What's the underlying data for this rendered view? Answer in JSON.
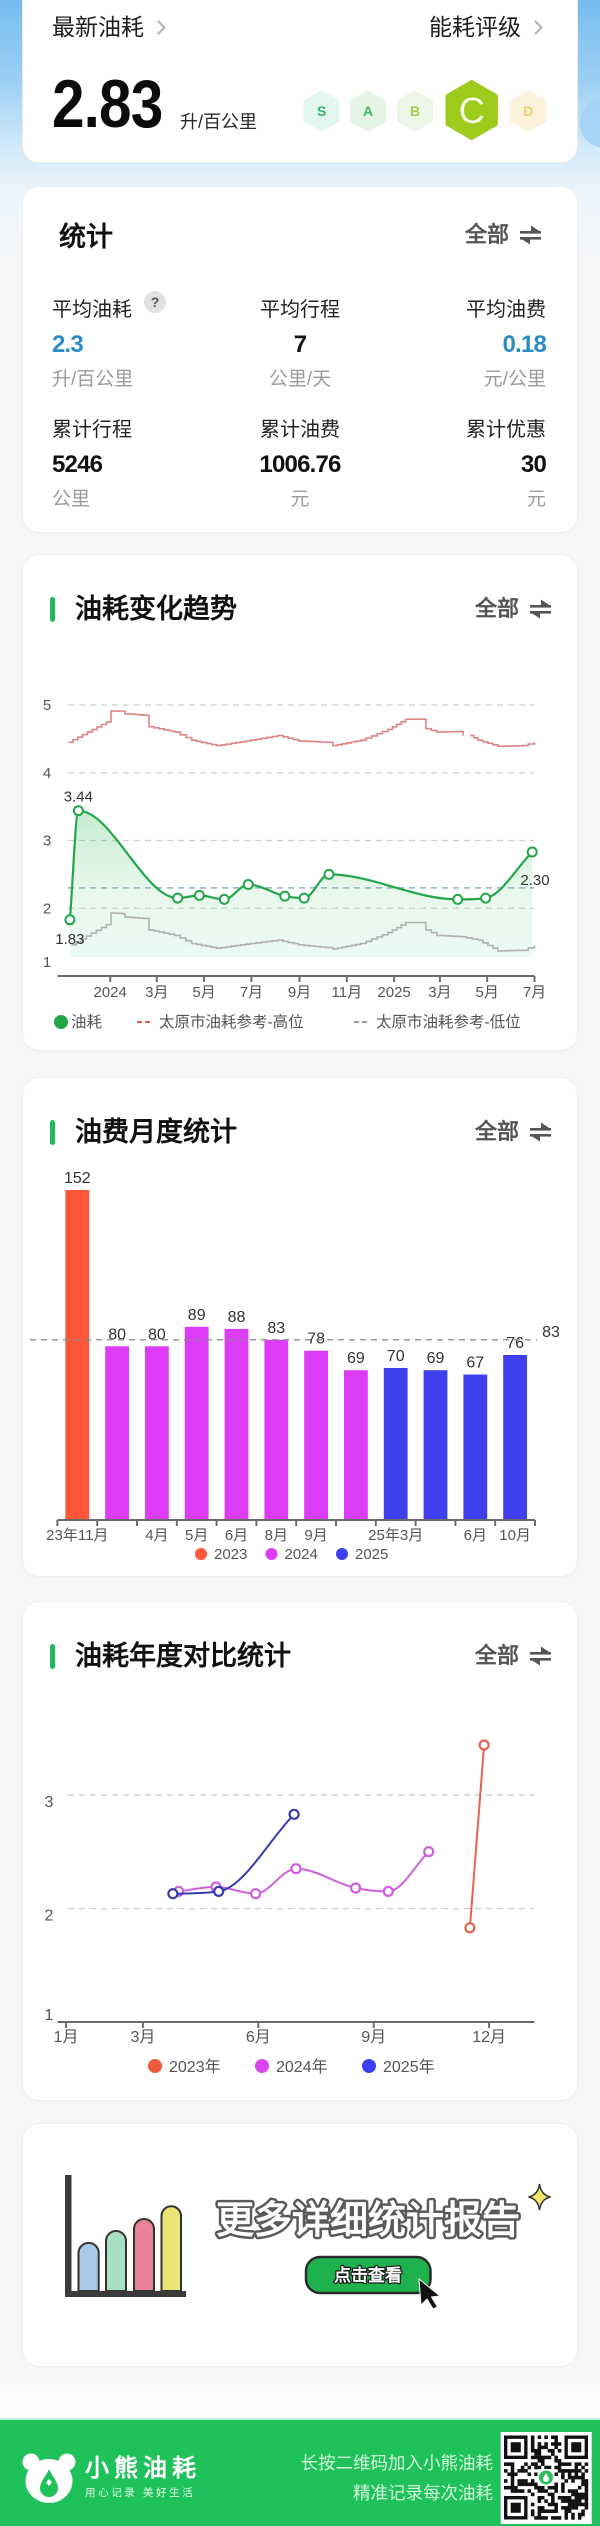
{
  "top_card": {
    "latest_label": "最新油耗",
    "rating_label": "能耗评级",
    "latest_value": "2.83",
    "latest_unit": "升/百公里",
    "active_rating": "C",
    "rating_levels": [
      {
        "label": "S",
        "bg": "#e3f6ef",
        "fg": "#35b364"
      },
      {
        "label": "A",
        "bg": "#e4f5e6",
        "fg": "#45b85a"
      },
      {
        "label": "B",
        "bg": "#edf5e6",
        "fg": "#9dd04e"
      },
      {
        "label": "C",
        "bg": "#9ccb1c",
        "fg": "#f7fbe6",
        "active": true
      },
      {
        "label": "D",
        "bg": "#fcf2da",
        "fg": "#f3cc72"
      }
    ]
  },
  "stats": {
    "title": "统计",
    "filter_label": "全部",
    "help_label": "?",
    "items": [
      {
        "label": "平均油耗",
        "value": "2.3",
        "unit": "升/百公里",
        "value_color": "#2b8cc4"
      },
      {
        "label": "平均行程",
        "value": "7",
        "unit": "公里/天"
      },
      {
        "label": "平均油费",
        "value": "0.18",
        "unit": "元/公里",
        "value_color": "#2b8cc4"
      },
      {
        "label": "累计行程",
        "value": "5246",
        "unit": "公里"
      },
      {
        "label": "累计油费",
        "value": "1006.76",
        "unit": "元"
      },
      {
        "label": "累计优惠",
        "value": "30",
        "unit": "元"
      }
    ]
  },
  "trend": {
    "title": "油耗变化趋势",
    "filter_label": "全部"
  },
  "monthly": {
    "title": "油费月度统计",
    "filter_label": "全部"
  },
  "yearly": {
    "title": "油耗年度对比统计",
    "filter_label": "全部"
  },
  "promo": {
    "title": "更多详细统计报告",
    "button_label": "点击查看"
  },
  "footer": {
    "brand": "小熊油耗",
    "tagline": "用心记录 美好生活",
    "line1": "长按二维码加入小熊油耗",
    "line2": "精准记录每次油耗"
  },
  "colors": {
    "accent_green": "#1fb85a",
    "footer_green": "#1ec15a",
    "highlight_blue": "#2b8cc4",
    "rating_active": "#9ccb1c"
  },
  "chart_data": [
    {
      "type": "line",
      "title": "油耗变化趋势",
      "xlabel": "",
      "ylabel": "",
      "ylim": [
        1,
        5
      ],
      "yticks": [
        1,
        2,
        3,
        4,
        5
      ],
      "xlim": [
        "2023-10-25",
        "2025-07-01"
      ],
      "xticks": [
        {
          "label": "2024",
          "date": "2024-01-01"
        },
        {
          "label": "3月",
          "date": "2024-03-01"
        },
        {
          "label": "5月",
          "date": "2024-05-01"
        },
        {
          "label": "7月",
          "date": "2024-07-01"
        },
        {
          "label": "9月",
          "date": "2024-09-01"
        },
        {
          "label": "11月",
          "date": "2024-11-01"
        },
        {
          "label": "2025",
          "date": "2025-01-01"
        },
        {
          "label": "3月",
          "date": "2025-03-01"
        },
        {
          "label": "5月",
          "date": "2025-05-01"
        },
        {
          "label": "7月",
          "date": "2025-07-01"
        }
      ],
      "grid": true,
      "legend_position": "bottom",
      "series": [
        {
          "name": "油耗",
          "color": "#23a64a",
          "legend_style": "dot",
          "smooth": true,
          "area": true,
          "points": [
            {
              "date": "2023-11-10",
              "value": 1.83
            },
            {
              "date": "2023-11-21",
              "value": 3.44
            },
            {
              "date": "2024-03-28",
              "value": 2.15
            },
            {
              "date": "2024-04-25",
              "value": 2.19
            },
            {
              "date": "2024-05-27",
              "value": 2.13
            },
            {
              "date": "2024-06-27",
              "value": 2.35
            },
            {
              "date": "2024-08-13",
              "value": 2.18
            },
            {
              "date": "2024-09-07",
              "value": 2.15
            },
            {
              "date": "2024-10-09",
              "value": 2.5
            },
            {
              "date": "2025-03-24",
              "value": 2.13
            },
            {
              "date": "2025-04-29",
              "value": 2.15
            },
            {
              "date": "2025-06-28",
              "value": 2.83
            }
          ]
        },
        {
          "name": "太原市油耗参考-高位",
          "color": "#dc8585",
          "legend_color": "#e05a5a",
          "legend_style": "dashed",
          "step": true,
          "points": [
            {
              "date": "2023-11-08",
              "value": 4.45
            },
            {
              "date": "2023-12-27",
              "value": 4.75
            },
            {
              "date": "2024-01-02",
              "value": 4.91
            },
            {
              "date": "2024-01-16",
              "value": 4.91
            },
            {
              "date": "2024-01-20",
              "value": 4.87
            },
            {
              "date": "2024-02-13",
              "value": 4.85
            },
            {
              "date": "2024-02-20",
              "value": 4.68
            },
            {
              "date": "2024-03-24",
              "value": 4.6
            },
            {
              "date": "2024-04-15",
              "value": 4.48
            },
            {
              "date": "2024-05-17",
              "value": 4.4
            },
            {
              "date": "2024-06-30",
              "value": 4.48
            },
            {
              "date": "2024-08-04",
              "value": 4.55
            },
            {
              "date": "2024-08-31",
              "value": 4.47
            },
            {
              "date": "2024-10-05",
              "value": 4.45
            },
            {
              "date": "2024-10-14",
              "value": 4.4
            },
            {
              "date": "2024-11-19",
              "value": 4.48
            },
            {
              "date": "2024-12-24",
              "value": 4.64
            },
            {
              "date": "2025-01-16",
              "value": 4.79
            },
            {
              "date": "2025-02-05",
              "value": 4.79
            },
            {
              "date": "2025-02-11",
              "value": 4.65
            },
            {
              "date": "2025-02-25",
              "value": 4.6
            },
            {
              "date": "2025-03-28",
              "value": 4.61
            },
            {
              "date": "2025-03-31",
              "value": 4.55
            },
            {
              "date": "2025-04-05",
              "value": null
            },
            {
              "date": "2025-04-09",
              "value": 4.55
            },
            {
              "date": "2025-04-19",
              "value": 4.48
            },
            {
              "date": "2025-05-15",
              "value": 4.39
            },
            {
              "date": "2025-06-15",
              "value": 4.4
            },
            {
              "date": "2025-07-01",
              "value": 4.45
            }
          ]
        },
        {
          "name": "太原市油耗参考-低位",
          "color": "#b0b0b0",
          "legend_color": "#9a9a9a",
          "legend_style": "dashed",
          "step": true,
          "points": [
            {
              "date": "2023-11-12",
              "value": 1.46
            },
            {
              "date": "2023-12-27",
              "value": 1.76
            },
            {
              "date": "2024-01-02",
              "value": 1.93
            },
            {
              "date": "2024-01-16",
              "value": 1.92
            },
            {
              "date": "2024-01-20",
              "value": 1.87
            },
            {
              "date": "2024-02-13",
              "value": 1.85
            },
            {
              "date": "2024-02-20",
              "value": 1.68
            },
            {
              "date": "2024-03-24",
              "value": 1.6
            },
            {
              "date": "2024-04-15",
              "value": 1.48
            },
            {
              "date": "2024-05-17",
              "value": 1.41
            },
            {
              "date": "2024-06-30",
              "value": 1.48
            },
            {
              "date": "2024-08-04",
              "value": 1.53
            },
            {
              "date": "2024-08-31",
              "value": 1.46
            },
            {
              "date": "2024-10-05",
              "value": 1.42
            },
            {
              "date": "2024-10-14",
              "value": 1.4
            },
            {
              "date": "2024-11-19",
              "value": 1.48
            },
            {
              "date": "2024-12-24",
              "value": 1.64
            },
            {
              "date": "2025-01-16",
              "value": 1.79
            },
            {
              "date": "2025-02-05",
              "value": 1.79
            },
            {
              "date": "2025-02-11",
              "value": 1.68
            },
            {
              "date": "2025-02-25",
              "value": 1.6
            },
            {
              "date": "2025-03-28",
              "value": 1.58
            },
            {
              "date": "2025-04-19",
              "value": 1.53
            },
            {
              "date": "2025-05-15",
              "value": 1.37
            },
            {
              "date": "2025-06-15",
              "value": 1.38
            },
            {
              "date": "2025-07-01",
              "value": 1.45
            }
          ]
        }
      ],
      "annotations": [
        {
          "type": "max",
          "label": "3.44",
          "date": "2023-11-21",
          "value": 3.44
        },
        {
          "type": "min",
          "label": "1.83",
          "date": "2023-11-10",
          "value": 1.83
        },
        {
          "type": "average",
          "label": "2.30",
          "value": 2.3
        }
      ]
    },
    {
      "type": "bar",
      "title": "油费月度统计",
      "xlabel": "",
      "ylabel": "",
      "categories": [
        "23年11月",
        "",
        "4月",
        "5月",
        "6月",
        "8月",
        "9月",
        "",
        "25年3月",
        "",
        "6月",
        "10月"
      ],
      "values": [
        152,
        80,
        80,
        89,
        88,
        83,
        78,
        69,
        70,
        69,
        67,
        76
      ],
      "groups": [
        "2023",
        "2024",
        "2024",
        "2024",
        "2024",
        "2024",
        "2024",
        "2024",
        "2025",
        "2025",
        "2025",
        "2025"
      ],
      "series": [
        {
          "name": "2023",
          "color": "#ff5638"
        },
        {
          "name": "2024",
          "color": "#dc3cf5"
        },
        {
          "name": "2025",
          "color": "#3f3ff0"
        }
      ],
      "average": 83,
      "average_label": "83",
      "grid": false,
      "legend_position": "bottom"
    },
    {
      "type": "line",
      "title": "油耗年度对比统计",
      "xlabel": "",
      "ylabel": "",
      "xlim": [
        0.78,
        13.18
      ],
      "ylim": [
        1,
        3.44
      ],
      "yticks": [
        1,
        2,
        3
      ],
      "xticks": [
        {
          "label": "1月",
          "month": 1
        },
        {
          "label": "3月",
          "month": 3
        },
        {
          "label": "6月",
          "month": 6
        },
        {
          "label": "9月",
          "month": 9
        },
        {
          "label": "12月",
          "month": 12
        }
      ],
      "grid": true,
      "legend_position": "bottom",
      "series": [
        {
          "name": "2023年",
          "color": "#f05a3c",
          "line_color": "#e2654f",
          "points": [
            {
              "month": 11.5,
              "value": 1.83
            },
            {
              "month": 11.87,
              "value": 3.44
            }
          ]
        },
        {
          "name": "2024年",
          "color": "#d946ef",
          "line_color": "#cf5fe0",
          "points": [
            {
              "month": 3.93,
              "value": 2.15
            },
            {
              "month": 4.9,
              "value": 2.19
            },
            {
              "month": 5.93,
              "value": 2.13
            },
            {
              "month": 6.98,
              "value": 2.35
            },
            {
              "month": 8.53,
              "value": 2.18
            },
            {
              "month": 9.38,
              "value": 2.15
            },
            {
              "month": 10.43,
              "value": 2.5
            }
          ]
        },
        {
          "name": "2025年",
          "color": "#3f3ff0",
          "line_color": "#3b3bb0",
          "points": [
            {
              "month": 3.78,
              "value": 2.13
            },
            {
              "month": 4.97,
              "value": 2.15
            },
            {
              "month": 6.93,
              "value": 2.83
            }
          ]
        }
      ]
    }
  ]
}
